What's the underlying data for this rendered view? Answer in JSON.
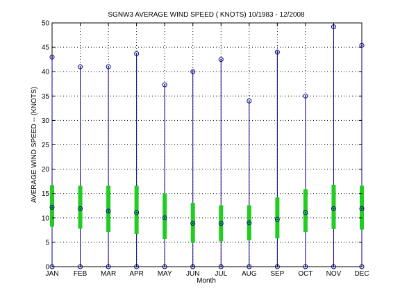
{
  "chart_data": {
    "type": "boxplot",
    "title": "SGNW3  AVERAGE WIND SPEED ( KNOTS) 10/1983 - 12/2008",
    "xlabel": "Month",
    "ylabel": "AVERAGE WIND SPEED -- (KNOTS)",
    "categories": [
      "JAN",
      "FEB",
      "MAR",
      "APR",
      "MAY",
      "JUN",
      "JUL",
      "AUG",
      "SEP",
      "OCT",
      "NOV",
      "DEC"
    ],
    "ylim": [
      0,
      50
    ],
    "yticks": [
      0,
      5,
      10,
      15,
      20,
      25,
      30,
      35,
      40,
      45,
      50
    ],
    "ytick_labels": [
      "0",
      "5",
      "10",
      "15",
      "20",
      "25",
      "30",
      "35",
      "40",
      "45",
      "50"
    ],
    "grid": true,
    "min": [
      0,
      0,
      0,
      0,
      0,
      0,
      0,
      0,
      0,
      0,
      0,
      0
    ],
    "max": [
      43.0,
      41.0,
      41.0,
      43.7,
      37.3,
      40.0,
      42.5,
      34.0,
      44.0,
      35.0,
      49.2,
      45.4
    ],
    "mean": [
      12.2,
      11.9,
      11.4,
      11.1,
      10.0,
      8.9,
      8.9,
      9.0,
      9.7,
      11.1,
      11.9,
      11.9
    ],
    "box_low": [
      8.2,
      7.8,
      7.1,
      6.7,
      5.7,
      4.9,
      5.2,
      5.4,
      5.8,
      7.1,
      7.7,
      7.6
    ],
    "box_high": [
      16.7,
      16.6,
      16.6,
      16.6,
      15.0,
      13.1,
      12.6,
      12.6,
      14.2,
      15.9,
      16.8,
      16.6
    ],
    "colors": {
      "whisker": "#00008b",
      "box": "#22cc22",
      "marker": "#000080",
      "grid": "#000000"
    }
  }
}
